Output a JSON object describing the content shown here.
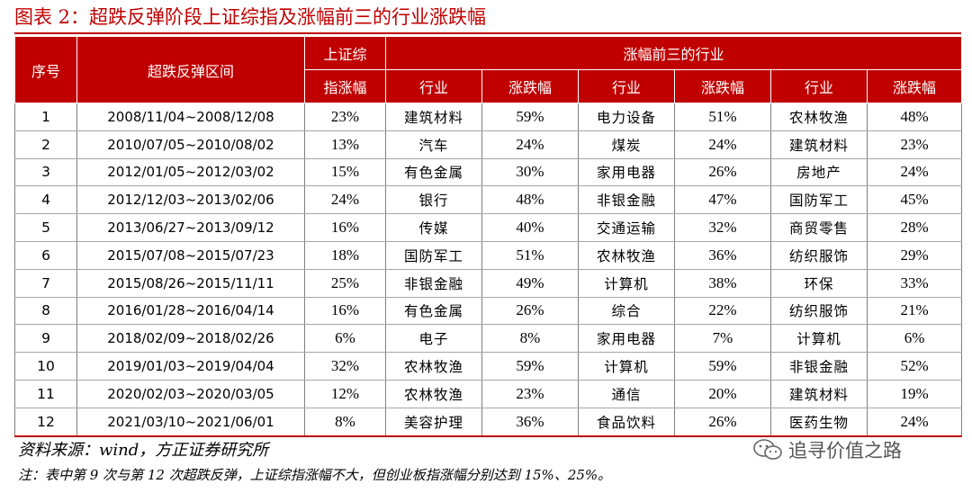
{
  "title": "图表 2：超跌反弹阶段上证综指及涨幅前三的行业涨跌幅",
  "colors": {
    "accent": "#c00000",
    "header_text": "#ffffff"
  },
  "table": {
    "headers": {
      "seq": "序号",
      "interval": "超跌反弹区间",
      "index_line1": "上证综",
      "index_line2": "指涨幅",
      "top3": "涨幅前三的行业",
      "industry": "行业",
      "change": "涨跌幅"
    },
    "rows": [
      {
        "seq": "1",
        "interval": "2008/11/04~2008/12/08",
        "index": "23%",
        "ind1": "建筑材料",
        "chg1": "59%",
        "ind2": "电力设备",
        "chg2": "51%",
        "ind3": "农林牧渔",
        "chg3": "48%"
      },
      {
        "seq": "2",
        "interval": "2010/07/05~2010/08/02",
        "index": "13%",
        "ind1": "汽车",
        "chg1": "24%",
        "ind2": "煤炭",
        "chg2": "24%",
        "ind3": "建筑材料",
        "chg3": "23%"
      },
      {
        "seq": "3",
        "interval": "2012/01/05~2012/03/02",
        "index": "15%",
        "ind1": "有色金属",
        "chg1": "30%",
        "ind2": "家用电器",
        "chg2": "26%",
        "ind3": "房地产",
        "chg3": "24%"
      },
      {
        "seq": "4",
        "interval": "2012/12/03~2013/02/06",
        "index": "24%",
        "ind1": "银行",
        "chg1": "48%",
        "ind2": "非银金融",
        "chg2": "47%",
        "ind3": "国防军工",
        "chg3": "45%"
      },
      {
        "seq": "5",
        "interval": "2013/06/27~2013/09/12",
        "index": "16%",
        "ind1": "传媒",
        "chg1": "40%",
        "ind2": "交通运输",
        "chg2": "32%",
        "ind3": "商贸零售",
        "chg3": "28%"
      },
      {
        "seq": "6",
        "interval": "2015/07/08~2015/07/23",
        "index": "18%",
        "ind1": "国防军工",
        "chg1": "51%",
        "ind2": "农林牧渔",
        "chg2": "36%",
        "ind3": "纺织服饰",
        "chg3": "29%"
      },
      {
        "seq": "7",
        "interval": "2015/08/26~2015/11/11",
        "index": "25%",
        "ind1": "非银金融",
        "chg1": "49%",
        "ind2": "计算机",
        "chg2": "38%",
        "ind3": "环保",
        "chg3": "33%"
      },
      {
        "seq": "8",
        "interval": "2016/01/28~2016/04/14",
        "index": "16%",
        "ind1": "有色金属",
        "chg1": "26%",
        "ind2": "综合",
        "chg2": "22%",
        "ind3": "纺织服饰",
        "chg3": "21%"
      },
      {
        "seq": "9",
        "interval": "2018/02/09~2018/02/26",
        "index": "6%",
        "ind1": "电子",
        "chg1": "8%",
        "ind2": "家用电器",
        "chg2": "7%",
        "ind3": "计算机",
        "chg3": "6%"
      },
      {
        "seq": "10",
        "interval": "2019/01/03~2019/04/04",
        "index": "32%",
        "ind1": "农林牧渔",
        "chg1": "59%",
        "ind2": "计算机",
        "chg2": "59%",
        "ind3": "非银金融",
        "chg3": "52%"
      },
      {
        "seq": "11",
        "interval": "2020/02/03~2020/03/05",
        "index": "12%",
        "ind1": "农林牧渔",
        "chg1": "23%",
        "ind2": "通信",
        "chg2": "20%",
        "ind3": "建筑材料",
        "chg3": "19%"
      },
      {
        "seq": "12",
        "interval": "2021/03/10~2021/06/01",
        "index": "8%",
        "ind1": "美容护理",
        "chg1": "36%",
        "ind2": "食品饮料",
        "chg2": "26%",
        "ind3": "医药生物",
        "chg3": "24%"
      }
    ]
  },
  "source": "资料来源：wind，方正证券研究所",
  "note": "注：表中第 9 次与第 12 次超跌反弹，上证综指涨幅不大，但创业板指涨幅分别达到 15%、25%。",
  "watermark": {
    "text": "追寻价值之路",
    "icon": "wechat-icon"
  }
}
